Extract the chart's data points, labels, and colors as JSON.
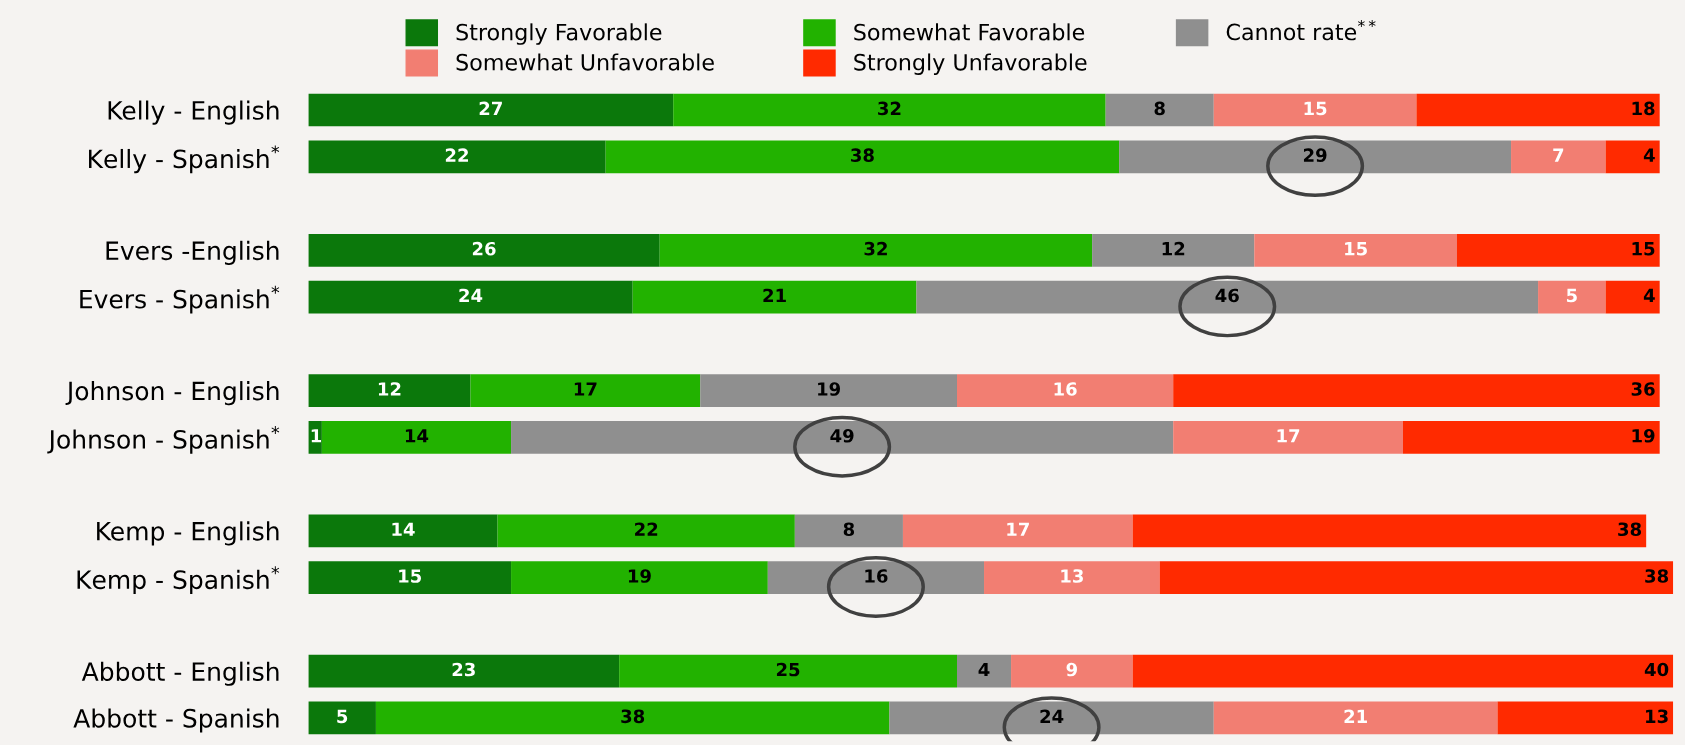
{
  "chart_data": {
    "type": "bar",
    "orientation": "horizontal",
    "stacked": true,
    "data_labels": true,
    "legend": "top",
    "grid": false,
    "categories": [
      "Kelly - English",
      "Kelly - Spanish$^{*}$",
      null,
      "Evers -English",
      "Evers - Spanish$^{*}$",
      null,
      "Johnson - English",
      "Johnson - Spanish$^{*}$",
      null,
      "Kemp - English",
      "Kemp - Spanish$^{*}$",
      null,
      "Abbott - English",
      "Abbott - Spanish"
    ],
    "series": [
      {
        "name": "Strongly Favorable",
        "color": "#0b780b",
        "values": [
          27,
          22,
          null,
          26,
          24,
          null,
          12,
          1,
          null,
          14,
          15,
          null,
          23,
          5
        ]
      },
      {
        "name": "Somewhat Favorable",
        "color": "#22b200",
        "values": [
          32,
          38,
          null,
          32,
          21,
          null,
          17,
          14,
          null,
          22,
          19,
          null,
          25,
          38
        ]
      },
      {
        "name": "Cannot rate$^{**}$",
        "color": "#8f8f8f",
        "values": [
          8,
          29,
          null,
          12,
          46,
          null,
          19,
          49,
          null,
          8,
          16,
          null,
          4,
          24
        ]
      },
      {
        "name": "Somewhat Unfavorable",
        "color": "#f27e72",
        "values": [
          15,
          7,
          null,
          15,
          5,
          null,
          16,
          17,
          null,
          17,
          13,
          null,
          9,
          21
        ]
      },
      {
        "name": "Strongly Unfavorable",
        "color": "#ff2a00",
        "values": [
          18,
          4,
          null,
          15,
          4,
          null,
          36,
          19,
          null,
          38,
          38,
          null,
          40,
          13
        ]
      }
    ]
  }
}
